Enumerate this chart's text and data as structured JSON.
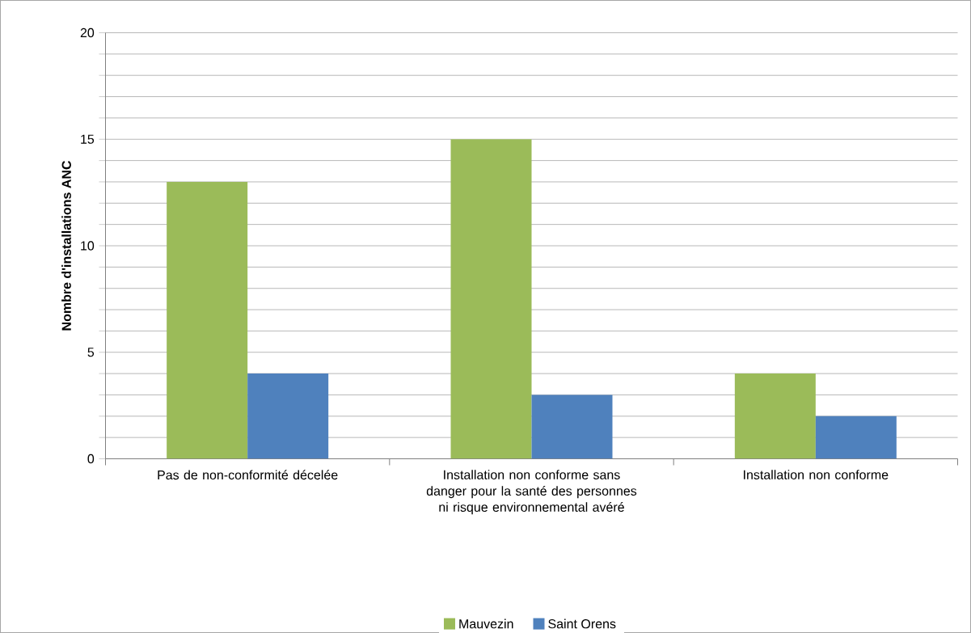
{
  "chart_data": {
    "type": "bar",
    "ylabel": "Nombre d'installations  ANC",
    "categories": [
      "Pas de non-conformité décelée",
      "Installation  non conforme sans danger pour la santé des personnes ni risque environnemental avéré",
      "Installation  non conforme"
    ],
    "series": [
      {
        "name": "Mauvezin",
        "color": "#9bbb59",
        "values": [
          13,
          15,
          4
        ]
      },
      {
        "name": "Saint Orens",
        "color": "#4f81bd",
        "values": [
          4,
          3,
          2
        ]
      }
    ],
    "ylim": [
      0,
      20
    ],
    "yticks": [
      0,
      {
        "value": 1,
        "label": null
      },
      {
        "value": 2,
        "label": null
      },
      {
        "value": 3,
        "label": null
      },
      {
        "value": 4,
        "label": null
      },
      5,
      {
        "value": 6,
        "label": null
      },
      {
        "value": 7,
        "label": null
      },
      {
        "value": 8,
        "label": null
      },
      {
        "value": 9,
        "label": null
      },
      10,
      {
        "value": 11,
        "label": null
      },
      {
        "value": 12,
        "label": null
      },
      {
        "value": 13,
        "label": null
      },
      {
        "value": 14,
        "label": null
      },
      15,
      {
        "value": 16,
        "label": null
      },
      {
        "value": 17,
        "label": null
      },
      {
        "value": 18,
        "label": null
      },
      {
        "value": 19,
        "label": null
      },
      20
    ],
    "grid": "y",
    "legend": "bottom"
  }
}
